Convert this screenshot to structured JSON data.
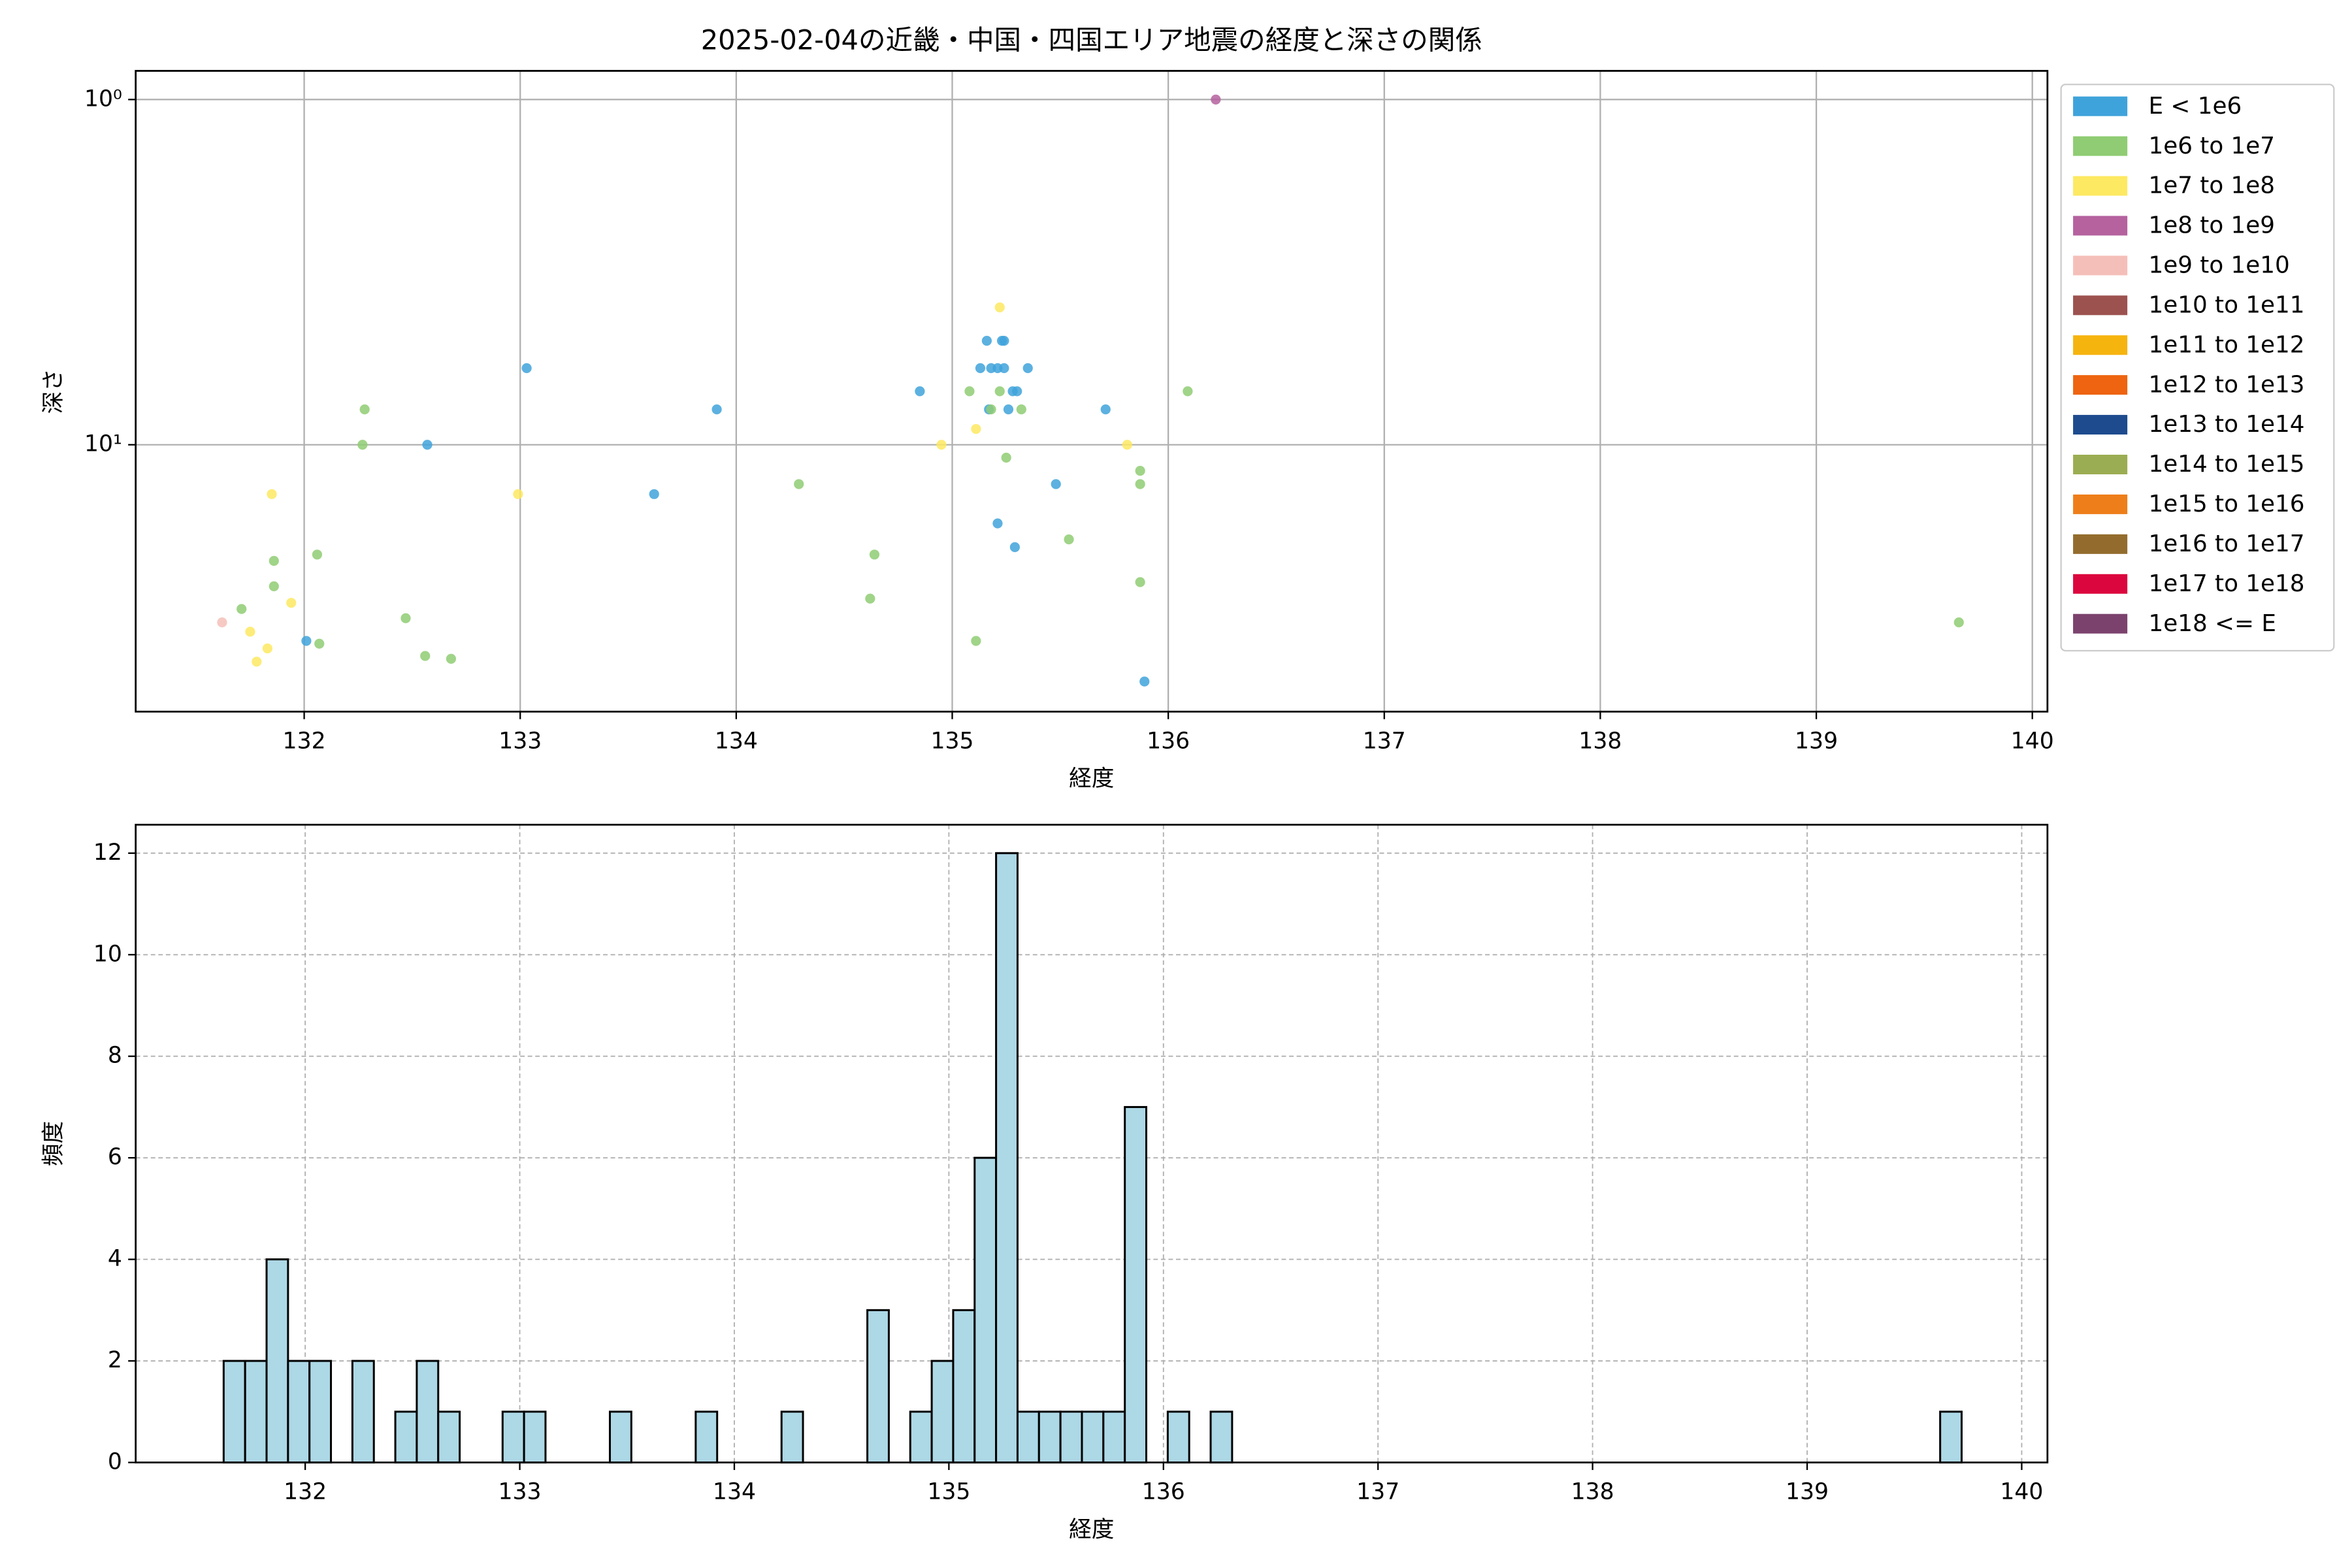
{
  "chart_data": [
    {
      "type": "scatter",
      "title": "2025-02-04の近畿・中国・四国エリア地震の経度と深さの関係",
      "xlabel": "経度",
      "ylabel": "深さ",
      "xlim": [
        131.22,
        140.07
      ],
      "ylim": [
        0.826,
        59.3
      ],
      "y_inverted": true,
      "yscale": "log",
      "xticks": [
        132,
        133,
        134,
        135,
        136,
        137,
        138,
        139,
        140
      ],
      "yticks": [
        {
          "value": 1,
          "label": "10⁰"
        },
        {
          "value": 10,
          "label": "10¹"
        }
      ],
      "grid": true,
      "grid_linestyle": "solid",
      "legend": "outside upper right",
      "series": [
        {
          "name": "E < 1e6",
          "color": "#3fa3db",
          "x": [
            133.03,
            132.57,
            133.91,
            133.62,
            132.01,
            134.85,
            135.16,
            135.24,
            135.23,
            135.13,
            135.18,
            135.21,
            135.24,
            135.35,
            135.17,
            135.28,
            135.3,
            135.26,
            135.71,
            135.48,
            135.21,
            135.29,
            135.89
          ],
          "values": [
            6.0,
            10,
            7.9,
            13.9,
            37,
            7.0,
            5.0,
            5.0,
            5.0,
            6.0,
            6.0,
            6.0,
            6.0,
            6.0,
            7.9,
            7.0,
            7.0,
            7.9,
            7.9,
            13,
            16.9,
            19.8,
            48.5
          ]
        },
        {
          "name": "1e6 to 1e7",
          "color": "#8fcc73",
          "x": [
            132.28,
            132.27,
            131.86,
            131.86,
            131.71,
            132.06,
            132.07,
            132.47,
            132.56,
            132.68,
            134.29,
            134.64,
            134.62,
            135.08,
            135.18,
            135.22,
            135.32,
            135.25,
            135.54,
            135.11,
            135.87,
            135.87,
            135.87,
            136.09,
            139.66
          ],
          "values": [
            7.9,
            10,
            21.7,
            25.7,
            29.9,
            20.8,
            37.7,
            31.8,
            40.9,
            41.7,
            13,
            20.8,
            27.9,
            7.0,
            7.9,
            7.0,
            7.9,
            10.9,
            18.8,
            37,
            11.9,
            13,
            25,
            7.0,
            32.7
          ]
        },
        {
          "name": "1e7 to 1e8",
          "color": "#fde962",
          "x": [
            131.85,
            131.94,
            131.75,
            131.83,
            131.78,
            132.99,
            134.95,
            135.22,
            135.11,
            135.81
          ],
          "values": [
            13.9,
            28.7,
            34.8,
            38.9,
            42.5,
            13.9,
            10,
            4.0,
            9.0,
            10
          ]
        },
        {
          "name": "1e8 to 1e9",
          "color": "#b5629f",
          "x": [
            136.22
          ],
          "values": [
            1.0
          ]
        },
        {
          "name": "1e9 to 1e10",
          "color": "#f5bfb9",
          "x": [
            131.62
          ],
          "values": [
            32.7
          ]
        },
        {
          "name": "1e10 to 1e11",
          "color": "#9c524f",
          "x": [],
          "values": []
        },
        {
          "name": "1e11 to 1e12",
          "color": "#f6b40f",
          "x": [],
          "values": []
        },
        {
          "name": "1e12 to 1e13",
          "color": "#ee6410",
          "x": [],
          "values": []
        },
        {
          "name": "1e13 to 1e14",
          "color": "#1d4b8e",
          "x": [],
          "values": []
        },
        {
          "name": "1e14 to 1e15",
          "color": "#9bad52",
          "x": [],
          "values": []
        },
        {
          "name": "1e15 to 1e16",
          "color": "#ee7e1a",
          "x": [],
          "values": []
        },
        {
          "name": "1e16 to 1e17",
          "color": "#936c2d",
          "x": [],
          "values": []
        },
        {
          "name": "1e17 to 1e18",
          "color": "#dc063e",
          "x": [],
          "values": []
        },
        {
          "name": "1e18 <= E",
          "color": "#7b426d",
          "x": [],
          "values": []
        }
      ]
    },
    {
      "type": "histogram",
      "xlabel": "経度",
      "ylabel": "頻度",
      "xlim": [
        131.21,
        140.12
      ],
      "ylim": [
        0,
        12.56
      ],
      "xticks": [
        132,
        133,
        134,
        135,
        136,
        137,
        138,
        139,
        140
      ],
      "yticks": [
        0,
        2,
        4,
        6,
        8,
        10,
        12
      ],
      "grid": true,
      "grid_linestyle": "dashed",
      "color": "#add8e6",
      "edgecolor": "#000000",
      "bins": [
        131.62,
        131.72,
        131.82,
        131.92,
        132.02,
        132.12,
        132.22,
        132.32,
        132.42,
        132.52,
        132.62,
        132.72,
        132.82,
        132.92,
        133.02,
        133.12,
        133.22,
        133.32,
        133.42,
        133.52,
        133.62,
        133.72,
        133.82,
        133.92,
        134.02,
        134.12,
        134.22,
        134.32,
        134.42,
        134.52,
        134.62,
        134.72,
        134.82,
        134.92,
        135.02,
        135.12,
        135.22,
        135.32,
        135.42,
        135.52,
        135.62,
        135.72,
        135.82,
        135.92,
        136.02,
        136.12,
        136.22,
        136.32,
        136.42,
        136.52,
        136.62,
        136.72,
        136.82,
        136.92,
        137.02,
        137.12,
        137.22,
        137.32,
        137.42,
        137.52,
        137.62,
        137.72,
        137.82,
        137.92,
        138.02,
        138.12,
        138.22,
        138.32,
        138.42,
        138.52,
        138.62,
        138.72,
        138.82,
        138.92,
        139.02,
        139.12,
        139.22,
        139.32,
        139.42,
        139.52,
        139.62,
        139.72
      ],
      "values": [
        2,
        2,
        4,
        2,
        2,
        0,
        2,
        0,
        1,
        2,
        1,
        0,
        0,
        1,
        1,
        0,
        0,
        0,
        1,
        0,
        0,
        0,
        1,
        0,
        0,
        0,
        1,
        0,
        0,
        0,
        3,
        0,
        1,
        2,
        3,
        6,
        12,
        1,
        1,
        1,
        1,
        1,
        7,
        0,
        1,
        0,
        1,
        0,
        0,
        0,
        0,
        0,
        0,
        0,
        0,
        0,
        0,
        0,
        0,
        0,
        0,
        0,
        0,
        0,
        0,
        0,
        0,
        0,
        0,
        0,
        0,
        0,
        0,
        0,
        0,
        0,
        0,
        0,
        0,
        0,
        1
      ]
    }
  ]
}
